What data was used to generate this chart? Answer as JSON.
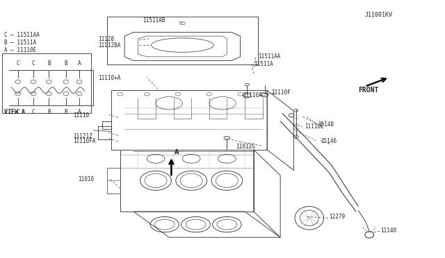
{
  "bg_color": "#ffffff",
  "line_color": "#444444",
  "text_color": "#222222",
  "fig_width": 6.4,
  "fig_height": 3.72,
  "dpi": 100,
  "diagram_code": "J11001KV",
  "front_label": "FRONT",
  "view_a_label": "VIEW A",
  "legend": [
    "A – 11110E",
    "B – 11511A",
    "C – 11511AA"
  ]
}
